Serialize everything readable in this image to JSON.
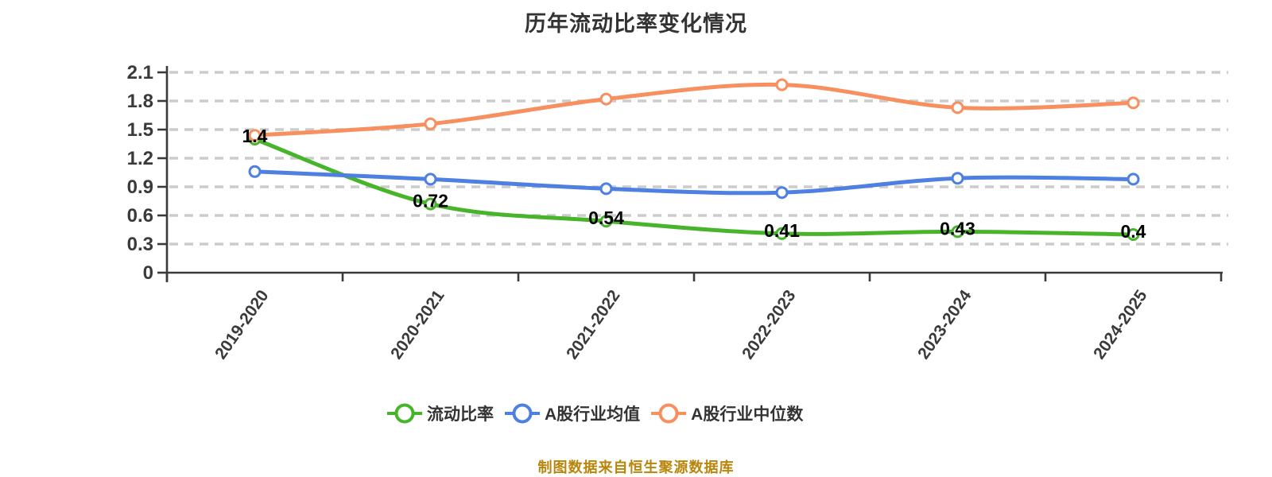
{
  "title": {
    "text": "历年流动比率变化情况",
    "color": "#333333"
  },
  "chart_data": {
    "type": "line",
    "title": "历年流动比率变化情况",
    "xlabel": "",
    "ylabel": "",
    "categories": [
      "2019-2020",
      "2020-2021",
      "2021-2022",
      "2022-2023",
      "2023-2024",
      "2024-2025"
    ],
    "series": [
      {
        "name": "流动比率",
        "color": "#47b42b",
        "values": [
          1.4,
          0.72,
          0.54,
          0.41,
          0.43,
          0.4
        ],
        "labels": [
          "1.4",
          "0.72",
          "0.54",
          "0.41",
          "0.43",
          "0.4"
        ],
        "show_labels": true
      },
      {
        "name": "A股行业均值",
        "color": "#4d80e0",
        "values": [
          1.06,
          0.98,
          0.88,
          0.84,
          0.99,
          0.98
        ],
        "labels": [],
        "show_labels": false
      },
      {
        "name": "A股行业中位数",
        "color": "#f78f5f",
        "values": [
          1.44,
          1.56,
          1.82,
          1.97,
          1.73,
          1.78
        ],
        "labels": [],
        "show_labels": false
      }
    ],
    "ylim": [
      0,
      2.1
    ],
    "yticks": [
      0,
      0.3,
      0.6,
      0.9,
      1.2,
      1.5,
      1.8,
      2.1
    ],
    "ytick_labels": [
      "0",
      "0.3",
      "0.6",
      "0.9",
      "1.2",
      "1.5",
      "1.8",
      "2.1"
    ],
    "grid": "horizontal-dashed",
    "legend_position": "bottom",
    "smooth": true,
    "colors": {
      "axis": "#3a3a3a",
      "grid": "#cccccc",
      "tick_label": "#3a3a3a",
      "data_label": "#000000",
      "marker_fill": "#ffffff"
    }
  },
  "footer": {
    "text": "制图数据来自恒生聚源数据库",
    "color": "#b8860b"
  }
}
